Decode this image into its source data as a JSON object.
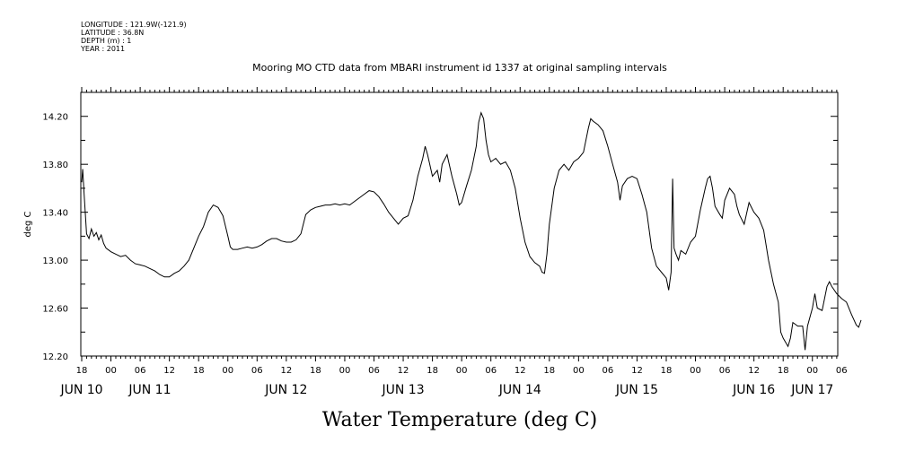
{
  "metadata": {
    "longitude": "LONGITUDE : 121.9W(-121.9)",
    "latitude": "LATITUDE : 36.8N",
    "depth": "DEPTH (m) : 1",
    "year": "YEAR : 2011"
  },
  "chart_data": {
    "type": "line",
    "title": "Mooring MO CTD data from MBARI instrument id 1337 at original sampling intervals",
    "xlabel": "Water Temperature (deg C)",
    "ylabel": "deg C",
    "xlim": [
      0,
      156
    ],
    "ylim": [
      12.2,
      14.4
    ],
    "x_unit": "hours since JUN 10 18:00",
    "yticks": [
      12.2,
      12.6,
      13.0,
      13.4,
      13.8,
      14.2
    ],
    "ytick_labels": [
      "12.20",
      "12.60",
      "13.00",
      "13.40",
      "13.80",
      "14.20"
    ],
    "hour_ticks": [
      "18",
      "00",
      "06",
      "12",
      "18",
      "00",
      "06",
      "12",
      "18",
      "00",
      "06",
      "12",
      "18",
      "00",
      "06",
      "12",
      "18",
      "00",
      "06",
      "12",
      "18",
      "00",
      "06",
      "12",
      "18",
      "00",
      "06"
    ],
    "day_labels": [
      {
        "label": "JUN 10",
        "x": 0
      },
      {
        "label": "JUN 11",
        "x": 14
      },
      {
        "label": "JUN 12",
        "x": 42
      },
      {
        "label": "JUN 13",
        "x": 66
      },
      {
        "label": "JUN 14",
        "x": 90
      },
      {
        "label": "JUN 15",
        "x": 114
      },
      {
        "label": "JUN 16",
        "x": 138
      },
      {
        "label": "JUN 17",
        "x": 150
      }
    ],
    "grid": false,
    "series": [
      {
        "color": "#000000",
        "points": [
          [
            0,
            13.65
          ],
          [
            0.2,
            13.76
          ],
          [
            0.5,
            13.55
          ],
          [
            1,
            13.22
          ],
          [
            1.5,
            13.18
          ],
          [
            2,
            13.26
          ],
          [
            2.5,
            13.2
          ],
          [
            3,
            13.23
          ],
          [
            3.5,
            13.17
          ],
          [
            4,
            13.21
          ],
          [
            4.5,
            13.14
          ],
          [
            5,
            13.1
          ],
          [
            6,
            13.07
          ],
          [
            7,
            13.05
          ],
          [
            8,
            13.03
          ],
          [
            9,
            13.04
          ],
          [
            10,
            13.0
          ],
          [
            11,
            12.97
          ],
          [
            12,
            12.96
          ],
          [
            13,
            12.95
          ],
          [
            14,
            12.93
          ],
          [
            15,
            12.91
          ],
          [
            16,
            12.88
          ],
          [
            17,
            12.86
          ],
          [
            18,
            12.86
          ],
          [
            19,
            12.89
          ],
          [
            20,
            12.91
          ],
          [
            21,
            12.95
          ],
          [
            22,
            13.0
          ],
          [
            23,
            13.1
          ],
          [
            24,
            13.2
          ],
          [
            25,
            13.28
          ],
          [
            26,
            13.4
          ],
          [
            27,
            13.46
          ],
          [
            28,
            13.44
          ],
          [
            29,
            13.37
          ],
          [
            30,
            13.2
          ],
          [
            30.5,
            13.11
          ],
          [
            31,
            13.09
          ],
          [
            32,
            13.09
          ],
          [
            33,
            13.1
          ],
          [
            34,
            13.11
          ],
          [
            35,
            13.1
          ],
          [
            36,
            13.11
          ],
          [
            37,
            13.13
          ],
          [
            38,
            13.16
          ],
          [
            39,
            13.18
          ],
          [
            40,
            13.18
          ],
          [
            41,
            13.16
          ],
          [
            42,
            13.15
          ],
          [
            43,
            13.15
          ],
          [
            44,
            13.17
          ],
          [
            45,
            13.22
          ],
          [
            46,
            13.38
          ],
          [
            47,
            13.42
          ],
          [
            48,
            13.44
          ],
          [
            49,
            13.45
          ],
          [
            50,
            13.46
          ],
          [
            51,
            13.46
          ],
          [
            52,
            13.47
          ],
          [
            53,
            13.46
          ],
          [
            54,
            13.47
          ],
          [
            55,
            13.46
          ],
          [
            56,
            13.49
          ],
          [
            57,
            13.52
          ],
          [
            58,
            13.55
          ],
          [
            59,
            13.58
          ],
          [
            60,
            13.57
          ],
          [
            61,
            13.53
          ],
          [
            62,
            13.47
          ],
          [
            63,
            13.4
          ],
          [
            64,
            13.35
          ],
          [
            65,
            13.3
          ],
          [
            66,
            13.35
          ],
          [
            67,
            13.37
          ],
          [
            68,
            13.5
          ],
          [
            69,
            13.7
          ],
          [
            70,
            13.85
          ],
          [
            70.5,
            13.95
          ],
          [
            71,
            13.88
          ],
          [
            72,
            13.7
          ],
          [
            73,
            13.75
          ],
          [
            73.5,
            13.65
          ],
          [
            74,
            13.8
          ],
          [
            75,
            13.88
          ],
          [
            76,
            13.7
          ],
          [
            77,
            13.55
          ],
          [
            77.5,
            13.46
          ],
          [
            78,
            13.48
          ],
          [
            79,
            13.62
          ],
          [
            80,
            13.75
          ],
          [
            81,
            13.95
          ],
          [
            81.5,
            14.15
          ],
          [
            82,
            14.23
          ],
          [
            82.5,
            14.18
          ],
          [
            83,
            14.0
          ],
          [
            83.5,
            13.88
          ],
          [
            84,
            13.82
          ],
          [
            85,
            13.85
          ],
          [
            86,
            13.8
          ],
          [
            87,
            13.82
          ],
          [
            88,
            13.75
          ],
          [
            89,
            13.6
          ],
          [
            90,
            13.35
          ],
          [
            91,
            13.15
          ],
          [
            92,
            13.03
          ],
          [
            93,
            12.98
          ],
          [
            94,
            12.95
          ],
          [
            94.5,
            12.9
          ],
          [
            95,
            12.89
          ],
          [
            95.5,
            13.05
          ],
          [
            96,
            13.3
          ],
          [
            97,
            13.6
          ],
          [
            98,
            13.75
          ],
          [
            99,
            13.8
          ],
          [
            100,
            13.75
          ],
          [
            101,
            13.82
          ],
          [
            102,
            13.85
          ],
          [
            103,
            13.9
          ],
          [
            104,
            14.1
          ],
          [
            104.5,
            14.18
          ],
          [
            105,
            14.16
          ],
          [
            106,
            14.13
          ],
          [
            107,
            14.08
          ],
          [
            108,
            13.95
          ],
          [
            109,
            13.8
          ],
          [
            110,
            13.65
          ],
          [
            110.5,
            13.5
          ],
          [
            111,
            13.62
          ],
          [
            112,
            13.68
          ],
          [
            113,
            13.7
          ],
          [
            114,
            13.68
          ],
          [
            115,
            13.55
          ],
          [
            116,
            13.4
          ],
          [
            117,
            13.1
          ],
          [
            118,
            12.95
          ],
          [
            119,
            12.9
          ],
          [
            120,
            12.85
          ],
          [
            120.5,
            12.75
          ],
          [
            121,
            12.9
          ],
          [
            121.3,
            13.68
          ],
          [
            121.6,
            13.1
          ],
          [
            122,
            13.05
          ],
          [
            122.5,
            13.0
          ],
          [
            123,
            13.08
          ],
          [
            124,
            13.05
          ],
          [
            125,
            13.15
          ],
          [
            126,
            13.2
          ],
          [
            127,
            13.42
          ],
          [
            128,
            13.6
          ],
          [
            128.5,
            13.68
          ],
          [
            129,
            13.7
          ],
          [
            129.5,
            13.6
          ],
          [
            130,
            13.45
          ],
          [
            131,
            13.38
          ],
          [
            131.5,
            13.35
          ],
          [
            132,
            13.5
          ],
          [
            133,
            13.6
          ],
          [
            134,
            13.55
          ],
          [
            134.5,
            13.45
          ],
          [
            135,
            13.38
          ],
          [
            136,
            13.3
          ],
          [
            137,
            13.48
          ],
          [
            138,
            13.4
          ],
          [
            139,
            13.35
          ],
          [
            140,
            13.25
          ],
          [
            141,
            13.0
          ],
          [
            142,
            12.8
          ],
          [
            143,
            12.65
          ],
          [
            143.5,
            12.4
          ],
          [
            144,
            12.35
          ],
          [
            145,
            12.28
          ],
          [
            145.5,
            12.35
          ],
          [
            146,
            12.48
          ],
          [
            147,
            12.45
          ],
          [
            148,
            12.45
          ],
          [
            148.5,
            12.25
          ],
          [
            149,
            12.45
          ],
          [
            150,
            12.6
          ],
          [
            150.5,
            12.72
          ],
          [
            151,
            12.6
          ],
          [
            152,
            12.58
          ],
          [
            153,
            12.78
          ],
          [
            153.5,
            12.82
          ],
          [
            154,
            12.78
          ],
          [
            155,
            12.72
          ],
          [
            156,
            12.68
          ],
          [
            157,
            12.65
          ],
          [
            158,
            12.55
          ],
          [
            159,
            12.46
          ],
          [
            159.5,
            12.44
          ],
          [
            160,
            12.5
          ]
        ]
      }
    ]
  }
}
